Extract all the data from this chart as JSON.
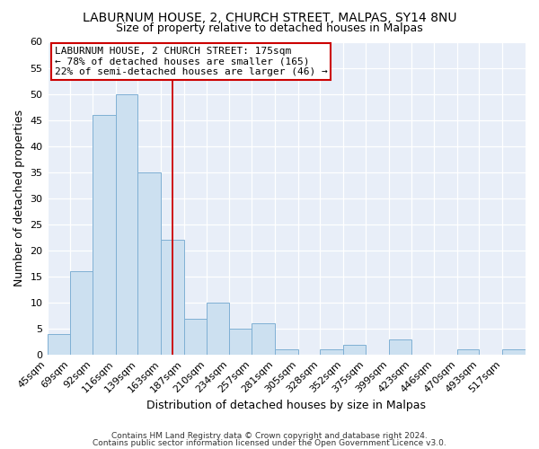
{
  "title": "LABURNUM HOUSE, 2, CHURCH STREET, MALPAS, SY14 8NU",
  "subtitle": "Size of property relative to detached houses in Malpas",
  "xlabel": "Distribution of detached houses by size in Malpas",
  "ylabel": "Number of detached properties",
  "bar_edges": [
    45,
    69,
    92,
    116,
    139,
    163,
    187,
    210,
    234,
    257,
    281,
    305,
    328,
    352,
    375,
    399,
    423,
    446,
    470,
    493,
    517
  ],
  "bar_heights": [
    4,
    16,
    46,
    50,
    35,
    22,
    7,
    10,
    5,
    6,
    1,
    0,
    1,
    2,
    0,
    3,
    0,
    0,
    1,
    0,
    1
  ],
  "bar_color": "#cce0f0",
  "bar_edge_color": "#7fb0d4",
  "property_line_x": 175,
  "property_line_color": "#cc0000",
  "ylim": [
    0,
    60
  ],
  "annotation_line1": "LABURNUM HOUSE, 2 CHURCH STREET: 175sqm",
  "annotation_line2": "← 78% of detached houses are smaller (165)",
  "annotation_line3": "22% of semi-detached houses are larger (46) →",
  "footer_line1": "Contains HM Land Registry data © Crown copyright and database right 2024.",
  "footer_line2": "Contains public sector information licensed under the Open Government Licence v3.0.",
  "tick_labels": [
    "45sqm",
    "69sqm",
    "92sqm",
    "116sqm",
    "139sqm",
    "163sqm",
    "187sqm",
    "210sqm",
    "234sqm",
    "257sqm",
    "281sqm",
    "305sqm",
    "328sqm",
    "352sqm",
    "375sqm",
    "399sqm",
    "423sqm",
    "446sqm",
    "470sqm",
    "493sqm",
    "517sqm"
  ],
  "bg_color": "#e8eef8"
}
